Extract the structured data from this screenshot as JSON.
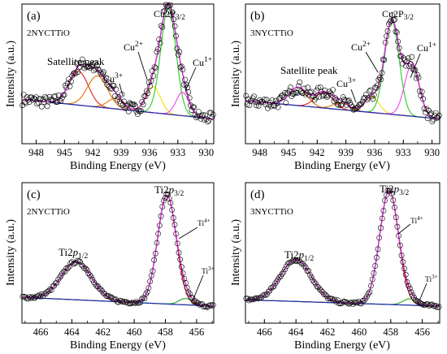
{
  "figure": {
    "panels": [
      {
        "letter": "(a)",
        "sample": "2NYCTTiO",
        "xlabel": "Binding Energy (eV)",
        "ylabel": "Intensity (a.u.)",
        "ticks": [
          "948",
          "945",
          "942",
          "939",
          "936",
          "933",
          "930"
        ],
        "annotations": {
          "satellite": "Satellite peak",
          "cu2p": "Cu2P",
          "cu2p_sub": "3/2",
          "cu2": "Cu",
          "cu2_sup": "2+",
          "cu3": "Cu",
          "cu3_sup": "3+",
          "cu1": "Cu",
          "cu1_sup": "1+"
        }
      },
      {
        "letter": "(b)",
        "sample": "3NYCTTiO",
        "xlabel": "Binding Energy (eV)",
        "ylabel": "Intensity (a.u.)",
        "ticks": [
          "948",
          "945",
          "942",
          "939",
          "936",
          "933",
          "930"
        ],
        "annotations": {
          "satellite": "Satellite peak",
          "cu2p": "Cu2P",
          "cu2p_sub": "3/2",
          "cu2": "Cu",
          "cu2_sup": "2+",
          "cu3": "Cu",
          "cu3_sup": "3+",
          "cu1": "Cu",
          "cu1_sup": "1+"
        }
      },
      {
        "letter": "(c)",
        "sample": "2NYCTTiO",
        "xlabel": "Binding Energy (eV)",
        "ylabel": "Intensity (a.u.)",
        "ticks": [
          "466",
          "464",
          "462",
          "460",
          "458",
          "456"
        ],
        "annotations": {
          "ti12": "Ti2",
          "ti12_p": "p",
          "ti12_sub": "1/2",
          "ti32": "Ti2",
          "ti32_p": "p",
          "ti32_sub": "3/2",
          "ti4": "Ti",
          "ti4_sup": "4+",
          "ti3": "Ti",
          "ti3_sup": "3+"
        }
      },
      {
        "letter": "(d)",
        "sample": "3NYCTTiO",
        "xlabel": "Binding Energy (eV)",
        "ylabel": "Intensity (a.u.)",
        "ticks": [
          "466",
          "464",
          "462",
          "460",
          "458",
          "456"
        ],
        "annotations": {
          "ti12": "Ti2",
          "ti12_p": "p",
          "ti12_sub": "1/2",
          "ti32": "Ti2",
          "ti32_p": "p",
          "ti32_sub": "3/2",
          "ti4": "Ti",
          "ti4_sup": "4+",
          "ti3": "Ti",
          "ti3_sup": "3+"
        }
      }
    ],
    "colors": {
      "points": "#000000",
      "envelope": "#cc33cc",
      "background": "#1f2bb0",
      "cu3": "#e07000",
      "satellite": "#dd2222",
      "cu2": "#f0e000",
      "main": "#22cc22",
      "cu1": "#ee44ee",
      "ti4": "#dd1111",
      "ti3": "#22aa22"
    }
  },
  "chart_data": [
    {
      "type": "scatter",
      "panel": "a",
      "xlim": [
        949.5,
        929.2
      ],
      "x_reversed": true,
      "y_units": "arbitrary (normalized 0-1)",
      "grid": false,
      "components": [
        {
          "label": "Satellite peak",
          "center": 943.5,
          "height": 0.26,
          "fwhm": 2.4
        },
        {
          "label": "Satellite peak",
          "center": 941.5,
          "height": 0.24,
          "fwhm": 2.5
        },
        {
          "label": "Cu3+",
          "center": 939.6,
          "height": 0.08,
          "fwhm": 2.0
        },
        {
          "label": "Cu2+",
          "center": 935.6,
          "height": 0.2,
          "fwhm": 1.8
        },
        {
          "label": "Cu2P3/2",
          "center": 934.0,
          "height": 0.82,
          "fwhm": 1.9
        },
        {
          "label": "Cu1+",
          "center": 932.5,
          "height": 0.18,
          "fwhm": 1.6
        }
      ],
      "background": {
        "at_949": 0.15,
        "at_930": 0.0
      }
    },
    {
      "type": "scatter",
      "panel": "b",
      "xlim": [
        949.5,
        929.2
      ],
      "x_reversed": true,
      "y_units": "arbitrary (normalized 0-1)",
      "grid": false,
      "components": [
        {
          "label": "Satellite peak",
          "center": 944.0,
          "height": 0.14,
          "fwhm": 2.2
        },
        {
          "label": "Satellite peak",
          "center": 941.3,
          "height": 0.12,
          "fwhm": 2.2
        },
        {
          "label": "Cu3+",
          "center": 939.5,
          "height": 0.05,
          "fwhm": 2.0
        },
        {
          "label": "Cu2+",
          "center": 936.3,
          "height": 0.12,
          "fwhm": 1.8
        },
        {
          "label": "Cu2P3/2",
          "center": 934.2,
          "height": 0.72,
          "fwhm": 1.8
        },
        {
          "label": "Cu1+",
          "center": 932.1,
          "height": 0.4,
          "fwhm": 1.8
        }
      ],
      "background": {
        "at_949": 0.14,
        "at_930": 0.0
      }
    },
    {
      "type": "scatter",
      "panel": "c",
      "xlim": [
        467.2,
        454.9
      ],
      "x_reversed": true,
      "y_units": "arbitrary (normalized 0-1)",
      "grid": false,
      "components": [
        {
          "label": "Ti2p1/2",
          "center": 463.7,
          "height": 0.3,
          "fwhm": 2.3
        },
        {
          "label": "Ti4+",
          "center": 457.9,
          "height": 0.86,
          "fwhm": 1.4
        },
        {
          "label": "Ti3+",
          "center": 456.7,
          "height": 0.05,
          "fwhm": 1.0
        }
      ],
      "background": {
        "at_467": 0.07,
        "at_455": 0.0
      }
    },
    {
      "type": "scatter",
      "panel": "d",
      "xlim": [
        467.2,
        454.9
      ],
      "x_reversed": true,
      "y_units": "arbitrary (normalized 0-1)",
      "grid": false,
      "components": [
        {
          "label": "Ti2p1/2",
          "center": 464.0,
          "height": 0.33,
          "fwhm": 2.3
        },
        {
          "label": "Ti4+",
          "center": 458.1,
          "height": 0.9,
          "fwhm": 1.4
        },
        {
          "label": "Ti3+",
          "center": 456.8,
          "height": 0.05,
          "fwhm": 1.0
        }
      ],
      "background": {
        "at_467": 0.05,
        "at_455": 0.0
      }
    }
  ]
}
